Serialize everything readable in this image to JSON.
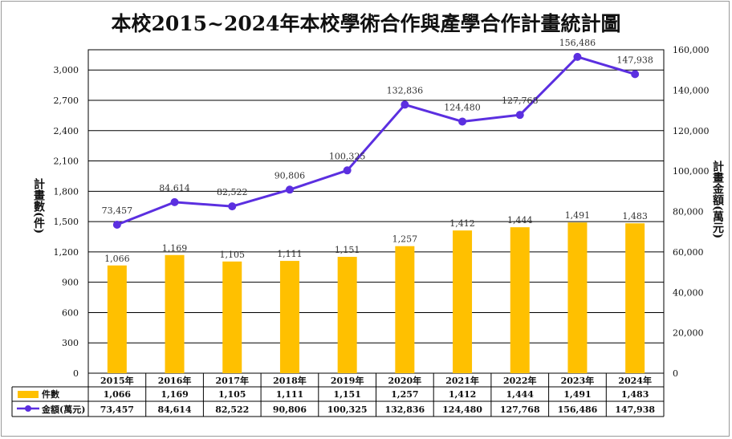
{
  "title": "本校2015~2024年本校學術合作與產學合作計畫統計圖",
  "chart_data": {
    "type": "bar",
    "categories": [
      "2015年",
      "2016年",
      "2017年",
      "2018年",
      "2019年",
      "2020年",
      "2021年",
      "2022年",
      "2023年",
      "2024年"
    ],
    "y_left": {
      "label": "計畫數(件)",
      "ylim": [
        0,
        3200
      ],
      "ticks": [
        "0",
        "300",
        "600",
        "900",
        "1,200",
        "1,500",
        "1,800",
        "2,100",
        "2,400",
        "2,700",
        "3,000"
      ]
    },
    "y_right": {
      "label": "計畫金額(萬元)",
      "ylim": [
        0,
        160000
      ],
      "ticks": [
        "0",
        "20,000",
        "40,000",
        "60,000",
        "80,000",
        "100,000",
        "120,000",
        "140,000",
        "160,000"
      ]
    },
    "series": [
      {
        "name": "件數",
        "kind": "bar",
        "axis": "left",
        "color": "#FFC000",
        "values": [
          1066,
          1169,
          1105,
          1111,
          1151,
          1257,
          1412,
          1444,
          1491,
          1483
        ],
        "labels": [
          "1,066",
          "1,169",
          "1,105",
          "1,111",
          "1,151",
          "1,257",
          "1,412",
          "1,444",
          "1,491",
          "1,483"
        ]
      },
      {
        "name": "金額(萬元)",
        "kind": "line",
        "axis": "right",
        "color": "#5B2FE0",
        "values": [
          73457,
          84614,
          82522,
          90806,
          100325,
          132836,
          124480,
          127768,
          156486,
          147938
        ],
        "labels": [
          "73,457",
          "84,614",
          "82,522",
          "90,806",
          "100,325",
          "132,836",
          "124,480",
          "127,768",
          "156,486",
          "147,938"
        ]
      }
    ],
    "grid": true,
    "legend": "data-table"
  }
}
